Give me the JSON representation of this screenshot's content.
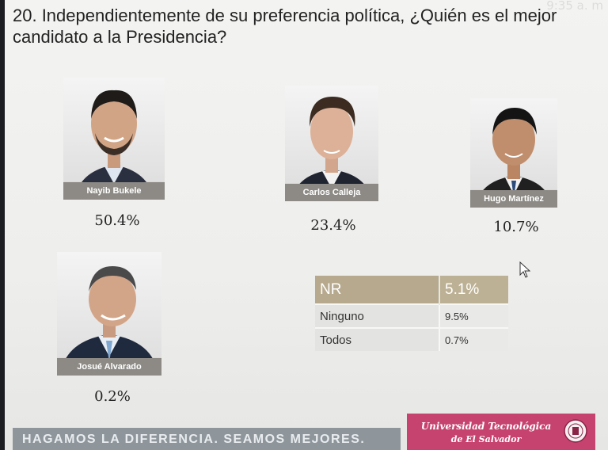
{
  "clock": "9:35 a. m",
  "question": "20. Independientemente de su preferencia política, ¿Quién es el mejor candidato a la Presidencia?",
  "candidates": [
    {
      "name": "Nayib Bukele",
      "pct": "50.4%"
    },
    {
      "name": "Carlos Calleja",
      "pct": "23.4%"
    },
    {
      "name": "Hugo Martínez",
      "pct": "10.7%"
    },
    {
      "name": "Josué Alvarado",
      "pct": "0.2%"
    }
  ],
  "table": {
    "head": {
      "label": "NR",
      "value": "5.1%"
    },
    "rows": [
      {
        "label": "Ninguno",
        "value": "9.5%"
      },
      {
        "label": "Todos",
        "value": "0.7%"
      }
    ]
  },
  "footer": {
    "slogan": "HAGAMOS LA DIFERENCIA. SEAMOS MEJORES.",
    "university_line1": "Universidad Tecnológica",
    "university_line2": "de El Salvador"
  },
  "colors": {
    "name_tag": "#8d8a85",
    "table_head": "#b6a98d",
    "university": "#c7436f",
    "footer": "#8e969c"
  }
}
